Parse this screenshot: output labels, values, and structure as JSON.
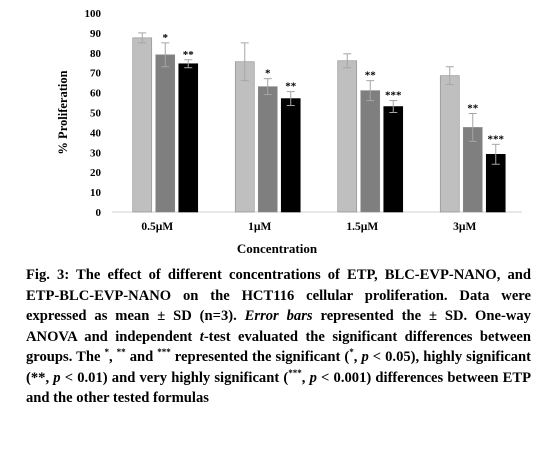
{
  "chart_data": {
    "type": "bar",
    "ylabel": "% Proliferation",
    "xlabel": "Concentration",
    "ylim": [
      0,
      100
    ],
    "yticks": [
      "0",
      "10",
      "20",
      "30",
      "40",
      "50",
      "60",
      "70",
      "80",
      "90",
      "100"
    ],
    "categories": [
      "0.5µM",
      "1µM",
      "1.5µM",
      "3µM"
    ],
    "series": [
      {
        "values": [
          87.5,
          75.5,
          76,
          68.5
        ],
        "errors": [
          2.5,
          9.5,
          3.5,
          4.5
        ],
        "sig": [
          "",
          "",
          "",
          ""
        ],
        "color": "#bfbfbf"
      },
      {
        "values": [
          79,
          63,
          61,
          42.5
        ],
        "errors": [
          6,
          4,
          5,
          7
        ],
        "sig": [
          "*",
          "*",
          "**",
          "**"
        ],
        "color": "#7f7f7f"
      },
      {
        "values": [
          74.5,
          57,
          53,
          29
        ],
        "errors": [
          2,
          3.5,
          3,
          5
        ],
        "sig": [
          "**",
          "**",
          "***",
          "***"
        ],
        "color": "#000000"
      }
    ],
    "grid": false,
    "legend": "none"
  },
  "caption": {
    "fig_label": "Fig. 3:",
    "part1": " The effect of different concentrations of ETP, BLC-EVP-NANO, and ETP-BLC-EVP-NANO on the HCT116 cellular proliferation. Data were expressed as mean ± SD (n=3). ",
    "error_bars": "Error bars",
    "part2": " represented the ± SD. One-way ANOVA and independent ",
    "t": "t",
    "part3": "-test evaluated the significant differences between groups. The ",
    "sup1": "*",
    "sep1": ", ",
    "sup2": "**",
    "and1": " and ",
    "sup3": "***",
    "part4": " represented the significant (",
    "sup4": "*",
    "p1_sep": ", ",
    "p1": "p",
    "p1_val": " < 0.05), highly significant (**, ",
    "p2": "p",
    "p2_val": " < 0.01) and very highly significant (",
    "sup5": "***",
    "p3_sep": ", ",
    "p3": "p",
    "p3_val": " < 0.001) differences between ETP and the other tested formulas"
  }
}
